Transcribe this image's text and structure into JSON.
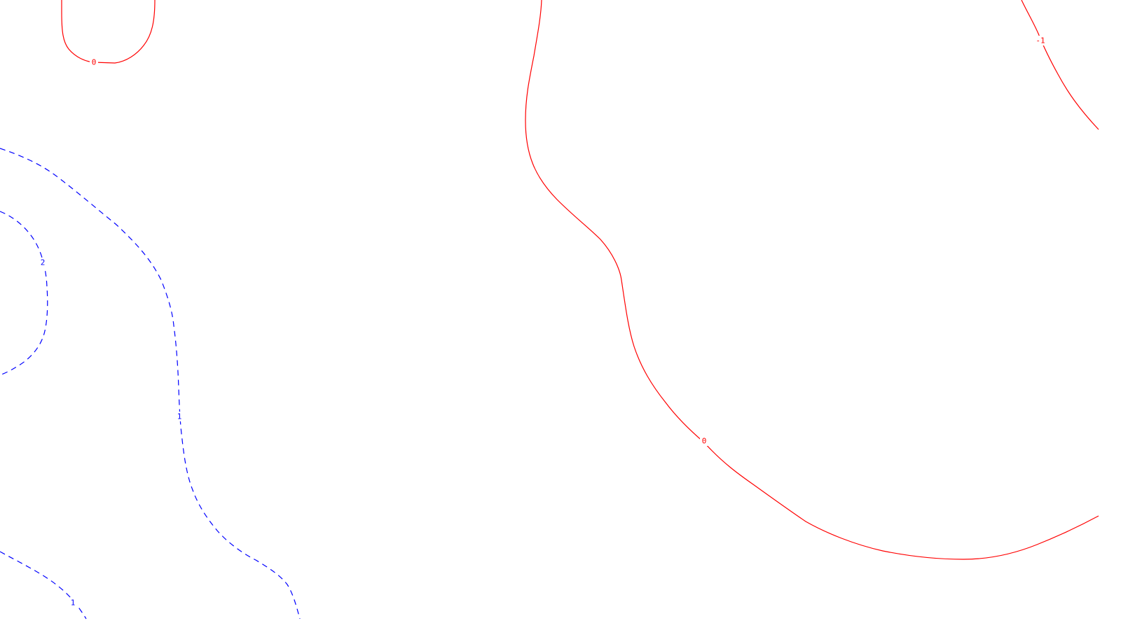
{
  "chart_data": {
    "type": "contour",
    "title": "",
    "xlabel": "",
    "ylabel": "",
    "grid": false,
    "legend": "none",
    "colors": {
      "positive": "#0000ff",
      "zero": "#ff0000",
      "negative": "#ff0000"
    },
    "line_styles": {
      "positive": "dashed",
      "zero": "solid",
      "negative": "solid"
    },
    "levels": [
      -1,
      0,
      1,
      2
    ],
    "contours": [
      {
        "level": 0,
        "label": "0"
      },
      {
        "level": 0,
        "label": "0"
      },
      {
        "level": -1,
        "label": "-1"
      },
      {
        "level": 2,
        "label": "2"
      },
      {
        "level": 1,
        "label": "1"
      },
      {
        "level": 1,
        "label": "1"
      }
    ]
  }
}
